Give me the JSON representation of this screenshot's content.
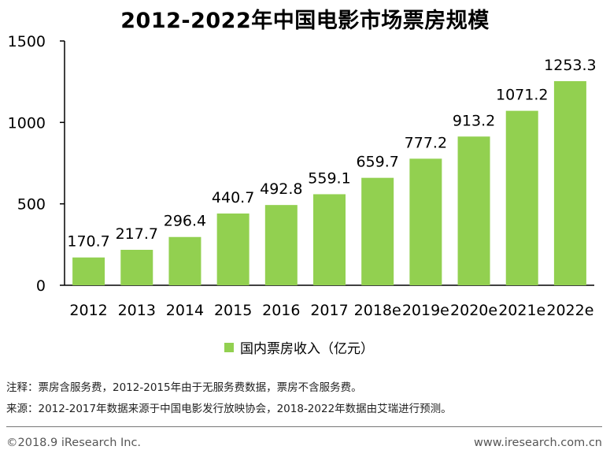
{
  "colors": {
    "bar": "#92d050",
    "axis": "#000000"
  },
  "footnotes": {
    "note": "注释：票房含服务费，2012-2015年由于无服务费数据，票房不含服务费。",
    "source": "来源：2012-2017年数据来源于中国电影发行放映协会，2018-2022年数据由艾瑞进行预测。"
  },
  "footer": {
    "copyright": "©2018.9 iResearch Inc.",
    "website": "www.iresearch.com.cn"
  },
  "chart_data": {
    "type": "bar",
    "title": "2012-2022年中国电影市场票房规模",
    "categories": [
      "2012",
      "2013",
      "2014",
      "2015",
      "2016",
      "2017",
      "2018e",
      "2019e",
      "2020e",
      "2021e",
      "2022e"
    ],
    "series": [
      {
        "name": "国内票房收入（亿元）",
        "values": [
          170.7,
          217.7,
          296.4,
          440.7,
          492.8,
          559.1,
          659.7,
          777.2,
          913.2,
          1071.2,
          1253.3
        ]
      }
    ],
    "value_labels": [
      "170.7",
      "217.7",
      "296.4",
      "440.7",
      "492.8",
      "559.1",
      "659.7",
      "777.2",
      "913.2",
      "1071.2",
      "1253.3"
    ],
    "ylim": [
      0,
      1500
    ],
    "yticks": [
      "0",
      "500",
      "1000",
      "1500"
    ],
    "grid": false,
    "legend_position": "bottom"
  }
}
